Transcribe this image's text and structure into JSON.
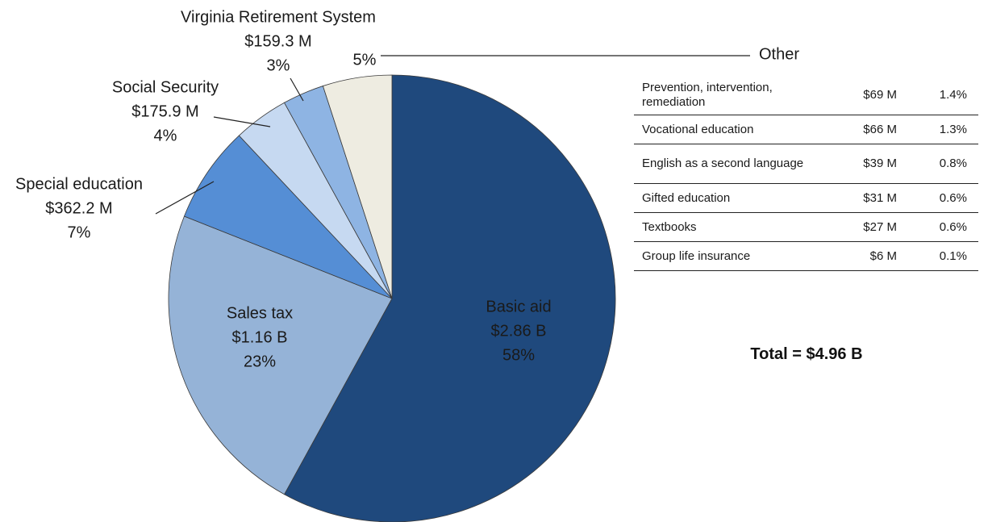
{
  "chart_data": {
    "type": "pie",
    "categories": [
      "Basic aid",
      "Sales tax",
      "Special education",
      "Social Security",
      "Virginia Retirement System",
      "Other"
    ],
    "values": [
      58,
      23,
      7,
      4,
      3,
      5
    ],
    "value_labels": [
      "58%",
      "23%",
      "7%",
      "4%",
      "3%",
      "5%"
    ],
    "amount_labels": [
      "$2.86 B",
      "$1.16 B",
      "$362.2 M",
      "$175.9 M",
      "$159.3 M",
      null
    ],
    "colors": [
      "#1f497d",
      "#95b3d7",
      "#558ed5",
      "#c6d9f1",
      "#8eb4e3",
      "#eeece1"
    ],
    "label_colors": [
      "#ffffff",
      "#1a1a1a",
      "#1a1a1a",
      "#1a1a1a",
      "#1a1a1a",
      "#1a1a1a"
    ]
  },
  "table": {
    "rows": [
      [
        "Prevention, intervention, remediation",
        "$69 M",
        "1.4%"
      ],
      [
        "Vocational education",
        "$66 M",
        "1.3%"
      ],
      [
        "English as a second language",
        "$39 M",
        "0.8%"
      ],
      [
        "Gifted education",
        "$31 M",
        "0.6%"
      ],
      [
        "Textbooks",
        "$27 M",
        "0.6%"
      ],
      [
        "Group life insurance",
        "$6 M",
        "0.1%"
      ]
    ]
  },
  "total": "Total = $4.96 B"
}
